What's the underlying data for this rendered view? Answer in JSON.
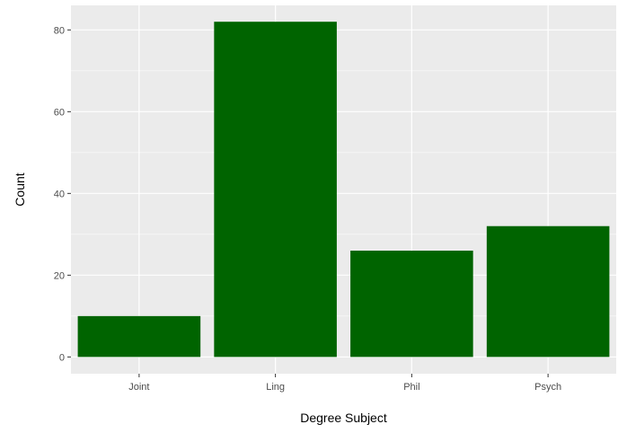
{
  "chart_data": {
    "type": "bar",
    "title": "",
    "xlabel": "Degree Subject",
    "ylabel": "Count",
    "categories": [
      "Joint",
      "Ling",
      "Phil",
      "Psych"
    ],
    "values": [
      10,
      82,
      26,
      32
    ],
    "ylim": [
      0,
      86
    ],
    "yticks": [
      0,
      20,
      40,
      60,
      80
    ],
    "ytick_labels": [
      "0",
      "20",
      "40",
      "60",
      "80"
    ],
    "grid": true,
    "legend": "none",
    "colors": {
      "bar": "#006400",
      "panel_background": "#ebebeb",
      "grid_major": "#ffffff",
      "axis_text": "#4d4d4d",
      "axis_title": "#000000"
    }
  }
}
